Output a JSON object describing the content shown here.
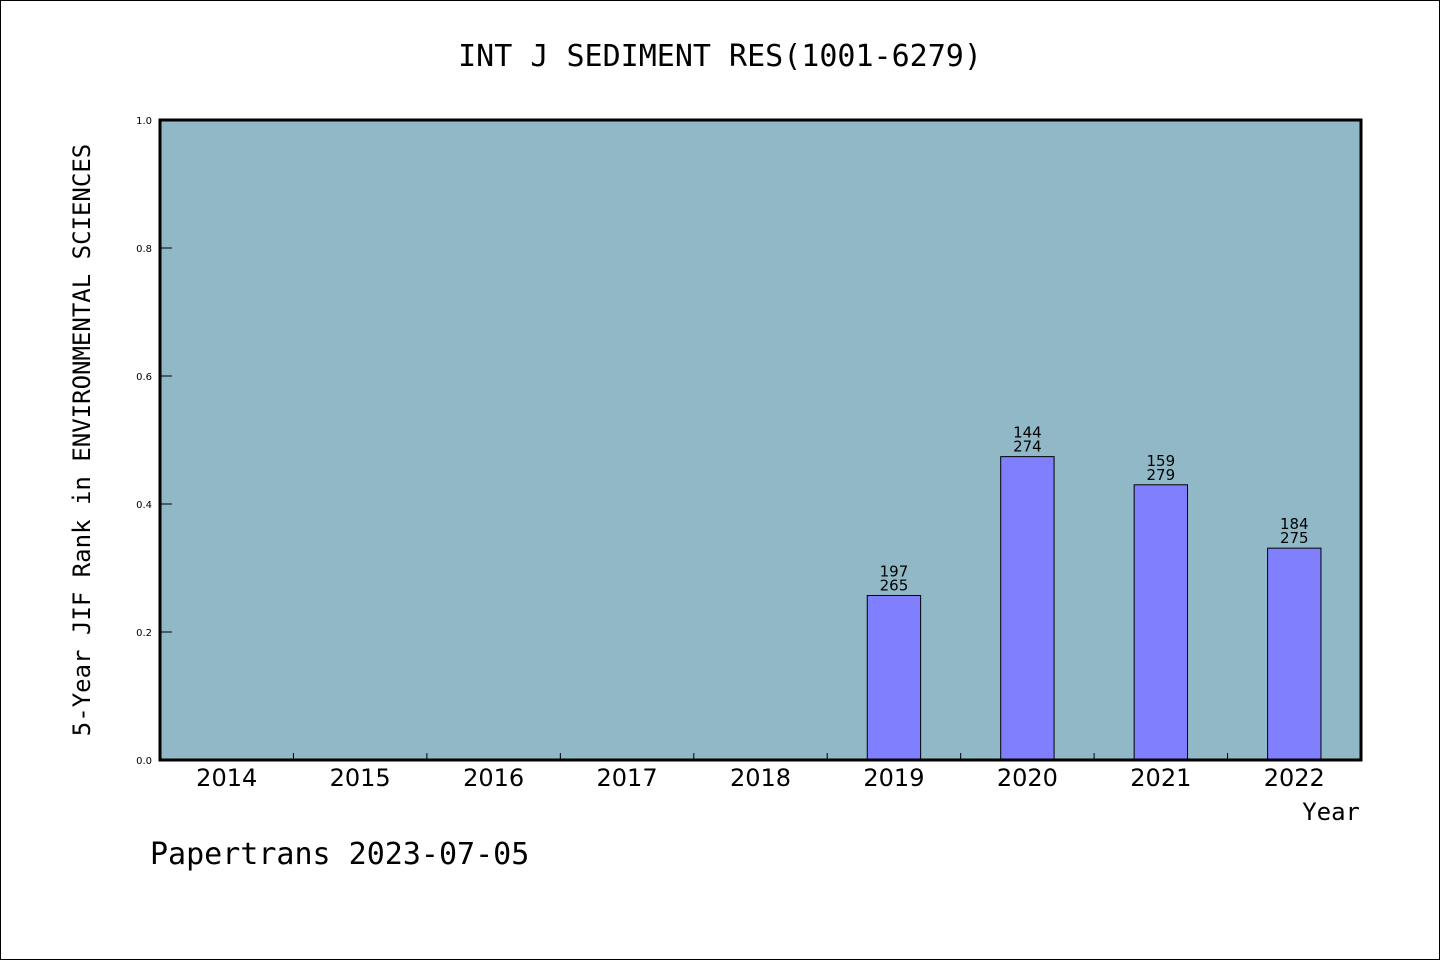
{
  "chart_data": {
    "type": "bar",
    "title": "INT J SEDIMENT RES(1001-6279)",
    "ylabel": "5-Year JIF Rank in ENVIRONMENTAL SCIENCES",
    "xlabel": "Year",
    "categories": [
      "2014",
      "2015",
      "2016",
      "2017",
      "2018",
      "2019",
      "2020",
      "2021",
      "2022"
    ],
    "values": [
      null,
      null,
      null,
      null,
      null,
      0.257,
      0.474,
      0.43,
      0.331
    ],
    "bar_labels": [
      null,
      null,
      null,
      null,
      null,
      [
        "197",
        "265"
      ],
      [
        "144",
        "274"
      ],
      [
        "159",
        "279"
      ],
      [
        "184",
        "275"
      ]
    ],
    "ylim": [
      0,
      1.0
    ],
    "yticks": [
      "0.0",
      "0.2",
      "0.4",
      "0.6",
      "0.8",
      "1.0"
    ],
    "grid": false,
    "plot_background": "#90b8c6",
    "bar_color": "#8080ff"
  },
  "footer": "Papertrans 2023-07-05"
}
